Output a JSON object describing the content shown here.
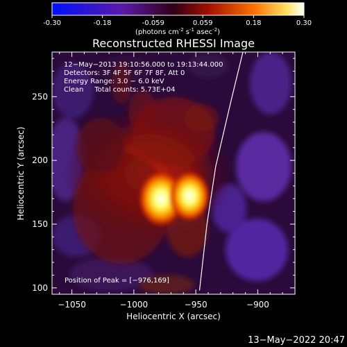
{
  "colorbar": {
    "ticks": [
      "-0.30",
      "-0.18",
      "-0.059",
      "0.059",
      "0.18",
      "0.30"
    ],
    "tick_values": [
      -0.3,
      -0.18,
      -0.059,
      0.059,
      0.18,
      0.3
    ],
    "range": [
      -0.3,
      0.3
    ],
    "unit_main": "(photons cm",
    "unit_exp1": "-2",
    "unit_mid": " s",
    "unit_exp2": "-1",
    "unit_end": " asec",
    "unit_exp3": "-2",
    "unit_close": ")",
    "colors": [
      "#0000ff",
      "#4b0082",
      "#1a0010",
      "#8b0000",
      "#ff6000",
      "#ffff60",
      "#ffffff"
    ]
  },
  "chart_data": {
    "type": "heatmap",
    "title": "Reconstructed RHESSI Image",
    "xlabel": "Heliocentric X (arcsec)",
    "ylabel": "Heliocentric Y (arcsec)",
    "xlim": [
      -1066,
      -870
    ],
    "ylim": [
      95,
      285
    ],
    "xticks": [
      -1050,
      -1000,
      -950,
      -900
    ],
    "xtick_labels": [
      "−1050",
      "−1000",
      "−950",
      "−900"
    ],
    "yticks": [
      100,
      150,
      200,
      250
    ],
    "ytick_labels": [
      "100",
      "150",
      "200",
      "250"
    ],
    "sources": [
      {
        "x": -978,
        "y": 170,
        "peak": 0.3
      },
      {
        "x": -955,
        "y": 172,
        "peak": 0.27
      }
    ],
    "limb_points": [
      [
        -947,
        98
      ],
      [
        -941,
        150
      ],
      [
        -934,
        195
      ],
      [
        -922,
        245
      ],
      [
        -912,
        285
      ]
    ],
    "annotations": {
      "line1": "12−May−2013 19:10:56.000 to 19:13:44.000",
      "line2": "Detectors: 3F 4F 5F 6F 7F 8F, Att 0",
      "line3": "Energy Range: 3.0 − 6.0 keV",
      "line4": "Clean     Total counts: 5.73E+04",
      "peak": "Position of Peak = [−976,169]"
    },
    "grid": false
  },
  "footer_timestamp": "13−May−2022 20:47"
}
